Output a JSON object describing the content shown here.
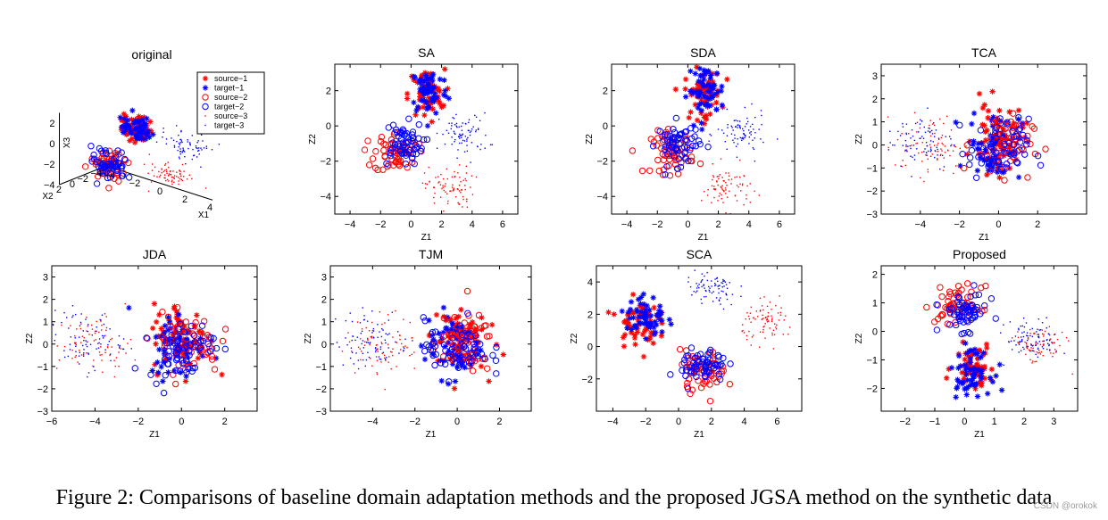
{
  "figure": {
    "caption": "Figure 2: Comparisons of baseline domain adaptation methods and the proposed JGSA method on the synthetic data",
    "watermark": "CSDN @orokok"
  },
  "legend": [
    {
      "label": "source−1",
      "marker": "star",
      "color": "#ff0000"
    },
    {
      "label": "target−1",
      "marker": "star",
      "color": "#0000ff"
    },
    {
      "label": "source−2",
      "marker": "circle",
      "color": "#ff0000"
    },
    {
      "label": "target−2",
      "marker": "circle",
      "color": "#0000ff"
    },
    {
      "label": "source−3",
      "marker": "dot",
      "color": "#ff0000"
    },
    {
      "label": "target−3",
      "marker": "dot",
      "color": "#0000ff"
    }
  ],
  "colors": {
    "source": "#ff0000",
    "target": "#0000ff",
    "axis": "#000000"
  },
  "chart_data": [
    {
      "type": "scatter",
      "title": "original",
      "projection": "3d",
      "xlabel": "X1",
      "ylabel": "X2",
      "zlabel": "X3",
      "x_ticks": [
        "−4",
        "−2",
        "0",
        "2",
        "4"
      ],
      "y_ticks": [
        "−4",
        "−2",
        "0",
        "2"
      ],
      "z_ticks": [
        "−4",
        "−2",
        "0",
        "2"
      ],
      "clusters": [
        {
          "class": "1",
          "center": [
            0,
            -1,
            2
          ],
          "note": "stars, source and target overlap"
        },
        {
          "class": "2",
          "center": [
            -1,
            1,
            -1.5
          ],
          "note": "circles"
        },
        {
          "class": "3",
          "center": [
            3,
            0,
            -1
          ],
          "note": "dots, shifted right"
        }
      ]
    },
    {
      "type": "scatter",
      "title": "SA",
      "xlabel": "Z1",
      "ylabel": "Z2",
      "xlim": [
        -5,
        7
      ],
      "ylim": [
        -5,
        3.5
      ],
      "x_ticks": [
        "−4",
        "−2",
        "0",
        "2",
        "4",
        "6"
      ],
      "y_ticks": [
        "−4",
        "−2",
        "0",
        "2"
      ],
      "clusters": [
        {
          "class": "1",
          "source": [
            1,
            1.8
          ],
          "target": [
            1.2,
            2
          ]
        },
        {
          "class": "2",
          "source": [
            -1,
            -1.5
          ],
          "target": [
            -0.6,
            -1
          ]
        },
        {
          "class": "3",
          "source": [
            2.5,
            -3.5
          ],
          "target": [
            3.5,
            -0.5
          ]
        }
      ]
    },
    {
      "type": "scatter",
      "title": "SDA",
      "xlabel": "Z1",
      "ylabel": "Z2",
      "xlim": [
        -5,
        7
      ],
      "ylim": [
        -5,
        3.5
      ],
      "x_ticks": [
        "−4",
        "−2",
        "0",
        "2",
        "4",
        "6"
      ],
      "y_ticks": [
        "−4",
        "−2",
        "0",
        "2"
      ],
      "clusters": [
        {
          "class": "1",
          "source": [
            1,
            1.8
          ],
          "target": [
            1.2,
            2
          ]
        },
        {
          "class": "2",
          "source": [
            -1,
            -1.5
          ],
          "target": [
            -0.6,
            -1
          ]
        },
        {
          "class": "3",
          "source": [
            2.5,
            -3.5
          ],
          "target": [
            3.5,
            -0.5
          ]
        }
      ]
    },
    {
      "type": "scatter",
      "title": "TCA",
      "xlabel": "Z1",
      "ylabel": "Z2",
      "xlim": [
        -6,
        4.5
      ],
      "ylim": [
        -3,
        3.5
      ],
      "x_ticks": [
        "−4",
        "−2",
        "0",
        "2"
      ],
      "y_ticks": [
        "−3",
        "−2",
        "−1",
        "0",
        "1",
        "2",
        "3"
      ],
      "clusters": [
        {
          "class": "1",
          "source": [
            0,
            0.3
          ],
          "target": [
            -0.2,
            0
          ]
        },
        {
          "class": "2",
          "source": [
            0.2,
            0
          ],
          "target": [
            0,
            -0.2
          ]
        },
        {
          "class": "3",
          "source": [
            -3.5,
            0
          ],
          "target": [
            -4,
            0.2
          ]
        }
      ]
    },
    {
      "type": "scatter",
      "title": "JDA",
      "xlabel": "Z1",
      "ylabel": "Z2",
      "xlim": [
        -6,
        3.5
      ],
      "ylim": [
        -3,
        3.5
      ],
      "x_ticks": [
        "−6",
        "−4",
        "−2",
        "0",
        "2"
      ],
      "y_ticks": [
        "−3",
        "−2",
        "−1",
        "0",
        "1",
        "2",
        "3"
      ],
      "clusters": [
        {
          "class": "1",
          "source": [
            0,
            0.3
          ],
          "target": [
            -0.2,
            0
          ]
        },
        {
          "class": "2",
          "source": [
            0.2,
            0
          ],
          "target": [
            0,
            -0.2
          ]
        },
        {
          "class": "3",
          "source": [
            -4,
            0
          ],
          "target": [
            -4.5,
            0.2
          ]
        }
      ]
    },
    {
      "type": "scatter",
      "title": "TJM",
      "xlabel": "Z1",
      "ylabel": "Z2",
      "xlim": [
        -6,
        3.5
      ],
      "ylim": [
        -3,
        3.5
      ],
      "x_ticks": [
        "−4",
        "−2",
        "0",
        "2"
      ],
      "y_ticks": [
        "−3",
        "−2",
        "−1",
        "0",
        "1",
        "2",
        "3"
      ],
      "clusters": [
        {
          "class": "1",
          "source": [
            0,
            0.3
          ],
          "target": [
            -0.2,
            0
          ]
        },
        {
          "class": "2",
          "source": [
            0.2,
            0
          ],
          "target": [
            0,
            -0.2
          ]
        },
        {
          "class": "3",
          "source": [
            -3.5,
            0
          ],
          "target": [
            -4,
            0.2
          ]
        }
      ]
    },
    {
      "type": "scatter",
      "title": "SCA",
      "xlabel": "Z1",
      "ylabel": "Z2",
      "xlim": [
        -5,
        7.5
      ],
      "ylim": [
        -4,
        5
      ],
      "x_ticks": [
        "−4",
        "−2",
        "0",
        "2",
        "4",
        "6"
      ],
      "y_ticks": [
        "−2",
        "0",
        "2",
        "4"
      ],
      "clusters": [
        {
          "class": "1",
          "source": [
            -2.5,
            1.5
          ],
          "target": [
            -2,
            1.8
          ]
        },
        {
          "class": "2",
          "source": [
            1.5,
            -1.5
          ],
          "target": [
            1.5,
            -1.2
          ]
        },
        {
          "class": "3",
          "source": [
            5.5,
            1.5
          ],
          "target": [
            2,
            3.5
          ]
        }
      ]
    },
    {
      "type": "scatter",
      "title": "Proposed",
      "xlabel": "Z1",
      "ylabel": "Z2",
      "xlim": [
        -2.8,
        3.8
      ],
      "ylim": [
        -2.8,
        2.3
      ],
      "x_ticks": [
        "−2",
        "−1",
        "0",
        "1",
        "2",
        "3"
      ],
      "y_ticks": [
        "−2",
        "−1",
        "0",
        "1",
        "2"
      ],
      "clusters": [
        {
          "class": "1",
          "source": [
            0.3,
            -1.2
          ],
          "target": [
            0.2,
            -1.4
          ]
        },
        {
          "class": "2",
          "source": [
            -0.2,
            0.9
          ],
          "target": [
            0,
            0.7
          ]
        },
        {
          "class": "3",
          "source": [
            2.5,
            -0.5
          ],
          "target": [
            2.3,
            -0.3
          ]
        }
      ]
    }
  ]
}
